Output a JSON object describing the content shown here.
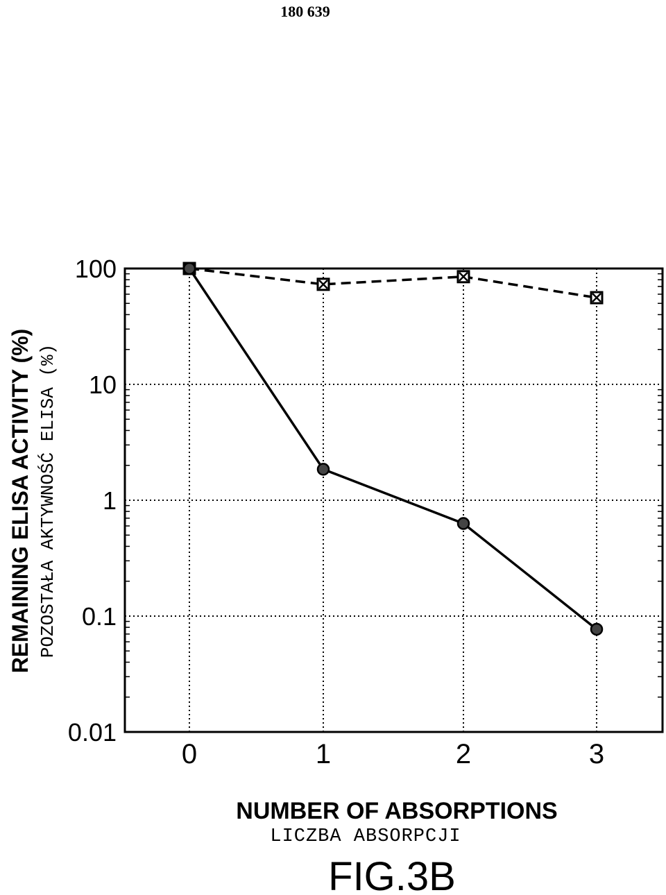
{
  "page": {
    "number": "180 639"
  },
  "figure": {
    "label": "FIG.3B"
  },
  "chart_data": {
    "type": "line",
    "ylabel": "REMAINING ELISA ACTIVITY (%)",
    "ylabel_secondary": "POZOSTAŁA AKTYWNOŚĆ ELISA (%)",
    "xlabel": "NUMBER OF ABSORPTIONS",
    "xlabel_secondary": "LICZBA ABSORPCJI",
    "y_scale": "log",
    "ylim": [
      0.01,
      100
    ],
    "y_ticks": [
      0.01,
      0.1,
      1,
      10,
      100
    ],
    "y_tick_labels": [
      "0.01",
      "0.1",
      "1",
      "10",
      "100"
    ],
    "xlim": [
      -0.5,
      3.5
    ],
    "x": [
      0,
      1,
      2,
      3
    ],
    "x_tick_labels": [
      "0",
      "1",
      "2",
      "3"
    ],
    "grid": true,
    "series": [
      {
        "style": "dashed",
        "marker": "square",
        "values": [
          100,
          73,
          85,
          56
        ]
      },
      {
        "style": "solid",
        "marker": "circle",
        "values": [
          100,
          1.85,
          0.63,
          0.077
        ]
      }
    ]
  }
}
